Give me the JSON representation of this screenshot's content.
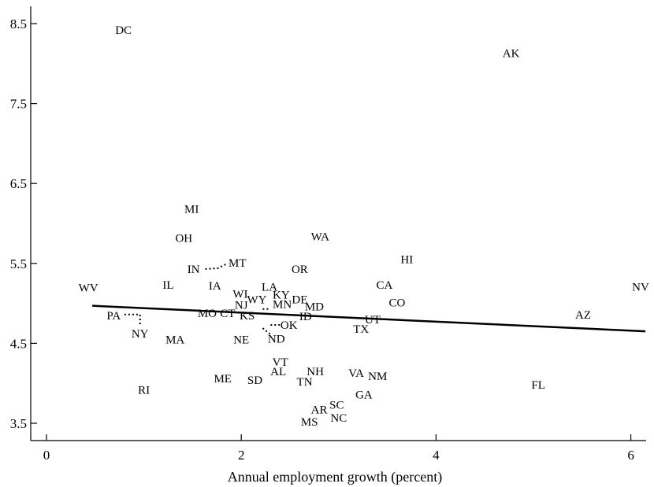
{
  "chart_data": {
    "type": "scatter",
    "xlabel": "Annual employment growth (percent)",
    "ylabel": "",
    "xlim": [
      -0.2,
      6.2
    ],
    "ylim": [
      3.3,
      8.6
    ],
    "x_ticks": [
      0,
      2,
      4,
      6
    ],
    "y_ticks": [
      3.5,
      4.5,
      5.5,
      6.5,
      7.5,
      8.5
    ],
    "grid": false,
    "trend_line": {
      "x": [
        0.47,
        6.15
      ],
      "y": [
        4.97,
        4.65
      ]
    },
    "points": [
      {
        "label": "DC",
        "x": 0.79,
        "y": 8.42
      },
      {
        "label": "AK",
        "x": 4.77,
        "y": 8.13
      },
      {
        "label": "MI",
        "x": 1.49,
        "y": 6.18
      },
      {
        "label": "OH",
        "x": 1.41,
        "y": 5.82
      },
      {
        "label": "WA",
        "x": 2.81,
        "y": 5.84
      },
      {
        "label": "HI",
        "x": 3.7,
        "y": 5.55
      },
      {
        "label": "MT",
        "x": 1.96,
        "y": 5.51
      },
      {
        "label": "IN",
        "x": 1.51,
        "y": 5.43
      },
      {
        "label": "OR",
        "x": 2.6,
        "y": 5.43
      },
      {
        "label": "WV",
        "x": 0.43,
        "y": 5.2
      },
      {
        "label": "IL",
        "x": 1.25,
        "y": 5.23
      },
      {
        "label": "IA",
        "x": 1.73,
        "y": 5.22
      },
      {
        "label": "LA",
        "x": 2.29,
        "y": 5.21
      },
      {
        "label": "CA",
        "x": 3.47,
        "y": 5.23
      },
      {
        "label": "NV",
        "x": 6.1,
        "y": 5.21
      },
      {
        "label": "WI",
        "x": 1.99,
        "y": 5.12
      },
      {
        "label": "KY",
        "x": 2.41,
        "y": 5.11
      },
      {
        "label": "WY",
        "x": 2.16,
        "y": 5.05
      },
      {
        "label": "DE",
        "x": 2.6,
        "y": 5.05
      },
      {
        "label": "MN",
        "x": 2.42,
        "y": 4.99
      },
      {
        "label": "NJ",
        "x": 2.0,
        "y": 4.98
      },
      {
        "label": "CO",
        "x": 3.6,
        "y": 5.01
      },
      {
        "label": "MD",
        "x": 2.75,
        "y": 4.96
      },
      {
        "label": "MO",
        "x": 1.65,
        "y": 4.88
      },
      {
        "label": "CT",
        "x": 1.86,
        "y": 4.88
      },
      {
        "label": "KS",
        "x": 2.06,
        "y": 4.85
      },
      {
        "label": "AZ",
        "x": 5.51,
        "y": 4.86
      },
      {
        "label": "PA",
        "x": 0.69,
        "y": 4.85
      },
      {
        "label": "ID",
        "x": 2.66,
        "y": 4.84
      },
      {
        "label": "UT",
        "x": 3.35,
        "y": 4.8
      },
      {
        "label": "OK",
        "x": 2.49,
        "y": 4.73
      },
      {
        "label": "TX",
        "x": 3.23,
        "y": 4.68
      },
      {
        "label": "NY",
        "x": 0.96,
        "y": 4.62
      },
      {
        "label": "MA",
        "x": 1.32,
        "y": 4.55
      },
      {
        "label": "NE",
        "x": 2.0,
        "y": 4.55
      },
      {
        "label": "ND",
        "x": 2.36,
        "y": 4.56
      },
      {
        "label": "VT",
        "x": 2.4,
        "y": 4.27
      },
      {
        "label": "NH",
        "x": 2.76,
        "y": 4.15
      },
      {
        "label": "AL",
        "x": 2.38,
        "y": 4.15
      },
      {
        "label": "VA",
        "x": 3.18,
        "y": 4.13
      },
      {
        "label": "NM",
        "x": 3.4,
        "y": 4.09
      },
      {
        "label": "ME",
        "x": 1.81,
        "y": 4.06
      },
      {
        "label": "SD",
        "x": 2.14,
        "y": 4.04
      },
      {
        "label": "TN",
        "x": 2.65,
        "y": 4.02
      },
      {
        "label": "FL",
        "x": 5.05,
        "y": 3.98
      },
      {
        "label": "RI",
        "x": 1.0,
        "y": 3.92
      },
      {
        "label": "GA",
        "x": 3.26,
        "y": 3.86
      },
      {
        "label": "SC",
        "x": 2.98,
        "y": 3.73
      },
      {
        "label": "AR",
        "x": 2.8,
        "y": 3.67
      },
      {
        "label": "NC",
        "x": 3.0,
        "y": 3.57
      },
      {
        "label": "MS",
        "x": 2.7,
        "y": 3.52
      }
    ],
    "leaders": [
      {
        "from": "IN",
        "path": [
          [
            1.63,
            5.43
          ],
          [
            1.76,
            5.44
          ],
          [
            1.86,
            5.5
          ]
        ]
      },
      {
        "from": "PA",
        "path": [
          [
            0.8,
            4.86
          ],
          [
            0.96,
            4.86
          ],
          [
            0.96,
            4.73
          ]
        ]
      },
      {
        "from": "OK",
        "path": [
          [
            2.3,
            4.73
          ],
          [
            2.32,
            4.73
          ],
          [
            2.4,
            4.73
          ]
        ]
      },
      {
        "from": "ND",
        "path": [
          [
            2.22,
            4.69
          ],
          [
            2.3,
            4.61
          ]
        ]
      },
      {
        "from": "MN",
        "path": [
          [
            2.22,
            4.93
          ],
          [
            2.3,
            4.93
          ]
        ]
      }
    ]
  }
}
